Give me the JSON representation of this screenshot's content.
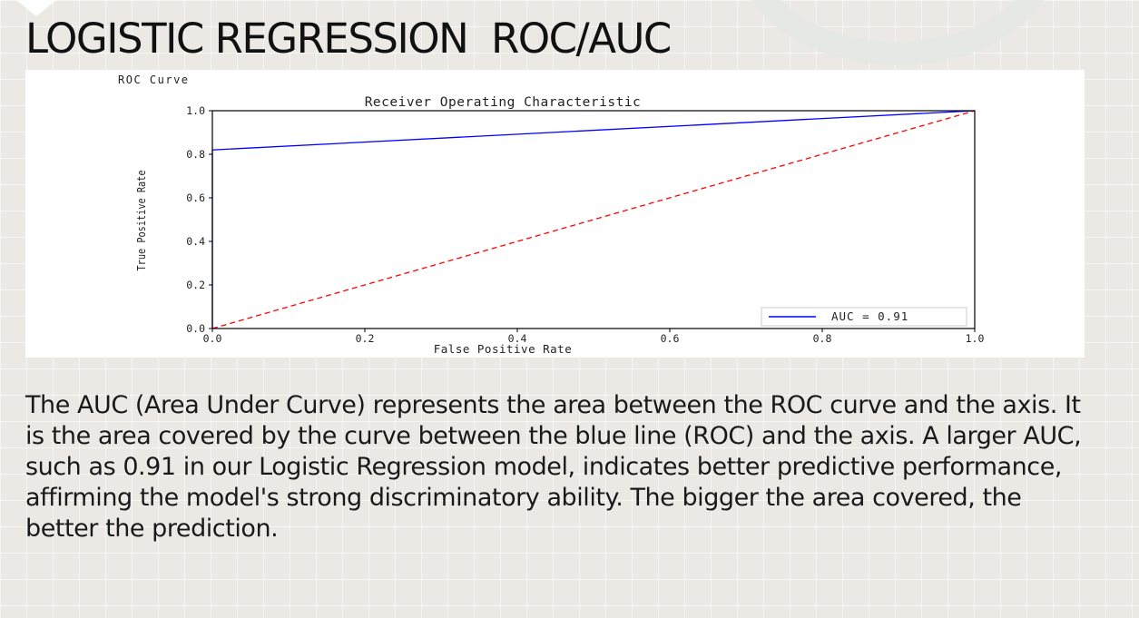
{
  "slide": {
    "title": "LOGISTIC REGRESSION  ROC/AUC",
    "body": "The AUC (Area Under Curve) represents the area between the ROC curve and the axis. It is the area covered by the curve between the blue line (ROC) and the axis. A larger AUC, such as 0.91 in our Logistic Regression model, indicates better predictive performance, affirming the model's strong discriminatory ability. The bigger the area covered, the better the prediction."
  },
  "chart_data": {
    "type": "line",
    "caption": "ROC Curve",
    "title": "Receiver Operating Characteristic",
    "xlabel": "False Positive Rate",
    "ylabel": "True Positive Rate",
    "xlim": [
      0,
      1
    ],
    "ylim": [
      0,
      1
    ],
    "xticks": [
      "0.0",
      "0.2",
      "0.4",
      "0.6",
      "0.8",
      "1.0"
    ],
    "yticks": [
      "0.0",
      "0.2",
      "0.4",
      "0.6",
      "0.8",
      "1.0"
    ],
    "grid": false,
    "legend_position": "lower-right",
    "series": [
      {
        "name": "AUC = 0.91",
        "color": "#0000ff",
        "style": "solid",
        "x": [
          0.0,
          0.0,
          1.0
        ],
        "y": [
          0.0,
          0.82,
          1.0
        ]
      },
      {
        "color": "#ff0000",
        "style": "dashed",
        "x": [
          0.0,
          1.0
        ],
        "y": [
          0.0,
          1.0
        ]
      }
    ]
  }
}
